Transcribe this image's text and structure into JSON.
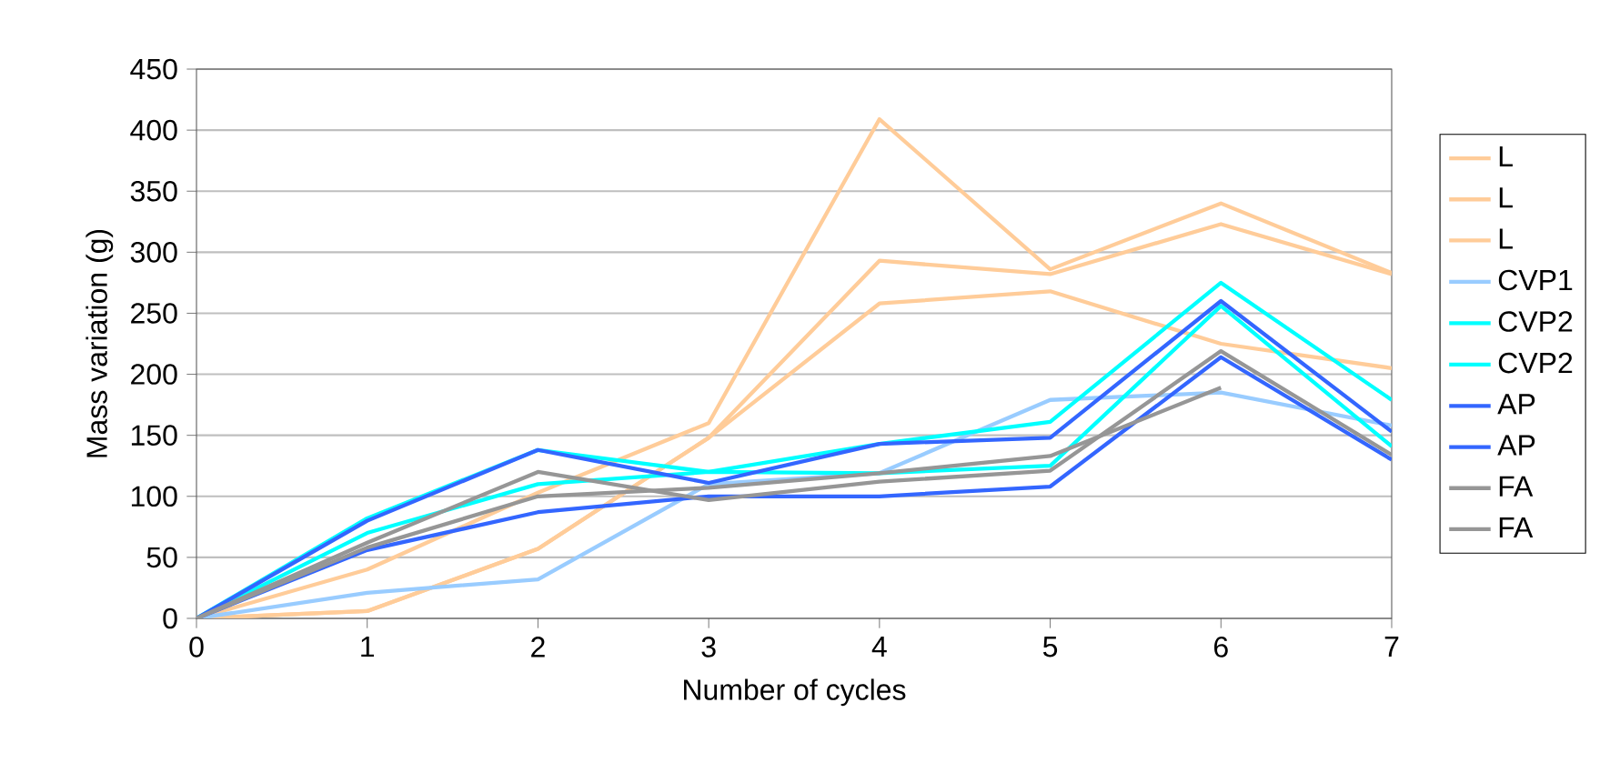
{
  "chart_data": {
    "type": "line",
    "xlabel": "Number of cycles",
    "ylabel": "Mass variation (g)",
    "x": [
      0,
      1,
      2,
      3,
      4,
      5,
      6,
      7
    ],
    "xlim": [
      0,
      7
    ],
    "xticks": [
      0,
      1,
      2,
      3,
      4,
      5,
      6,
      7
    ],
    "ylim": [
      0,
      450
    ],
    "yticks": [
      0,
      50,
      100,
      150,
      200,
      250,
      300,
      350,
      400,
      450
    ],
    "grid": "y",
    "legend": "right",
    "marker": "none",
    "line_style": "solid",
    "series": [
      {
        "name": "L",
        "color": "#ffcc99",
        "values": [
          0,
          40,
          103,
          160,
          409,
          286,
          340,
          283
        ]
      },
      {
        "name": "L",
        "color": "#ffcc99",
        "values": [
          0,
          6,
          57,
          148,
          293,
          282,
          323,
          282
        ]
      },
      {
        "name": "L",
        "color": "#ffcc99",
        "values": [
          0,
          6,
          57,
          148,
          258,
          268,
          225,
          205
        ]
      },
      {
        "name": "CVP1",
        "color": "#99ccff",
        "values": [
          0,
          21,
          32,
          110,
          119,
          179,
          185,
          158
        ]
      },
      {
        "name": "CVP2",
        "color": "#00ffff",
        "values": [
          0,
          82,
          138,
          120,
          143,
          161,
          275,
          179
        ]
      },
      {
        "name": "CVP2",
        "color": "#00ffff",
        "values": [
          0,
          70,
          110,
          120,
          119,
          125,
          256,
          141
        ]
      },
      {
        "name": "AP",
        "color": "#3366ff",
        "values": [
          0,
          80,
          138,
          111,
          143,
          148,
          260,
          153
        ]
      },
      {
        "name": "AP",
        "color": "#3366ff",
        "values": [
          0,
          56,
          87,
          100,
          100,
          108,
          214,
          130
        ]
      },
      {
        "name": "FA",
        "color": "#969696",
        "values": [
          0,
          62,
          120,
          97,
          112,
          121,
          219,
          134
        ]
      },
      {
        "name": "FA",
        "color": "#969696",
        "values": [
          0,
          58,
          100,
          107,
          119,
          133,
          189,
          null
        ]
      }
    ]
  }
}
